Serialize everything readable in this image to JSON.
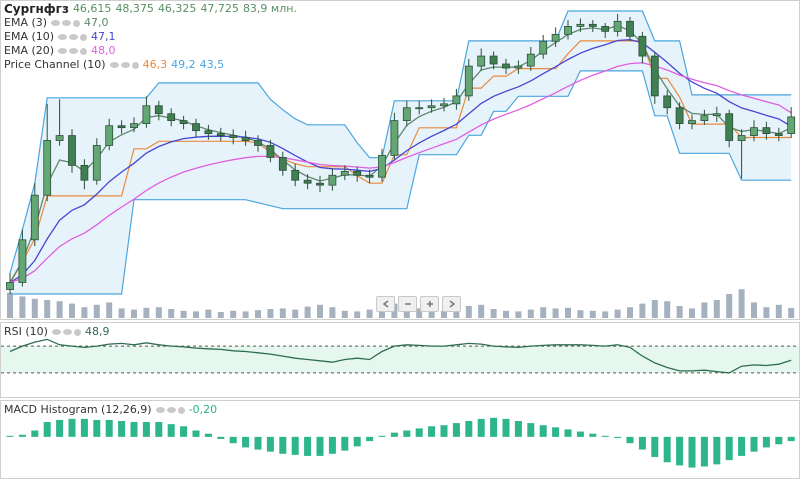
{
  "chart_data": {
    "type": "candlestick",
    "title": "Сургнфгз",
    "ohlc_labels": [
      {
        "value": 46.615,
        "label": "46,615"
      },
      {
        "value": 48.375,
        "label": "48,375"
      },
      {
        "value": 46.325,
        "label": "46,325"
      },
      {
        "value": 47.725,
        "label": "47,725"
      }
    ],
    "volume_label": {
      "value": 83.9,
      "label": "83,9 млн."
    },
    "label_color": "#5a8f62",
    "up_color": "#63a874",
    "down_color": "#3f7f52",
    "ylim": [
      35.5,
      55.0
    ],
    "open": [
      36.2,
      36.67,
      39.52,
      42.5,
      46.15,
      46.48,
      44.49,
      43.5,
      45.82,
      47.14,
      47.01,
      47.28,
      48.47,
      47.94,
      47.48,
      47.28,
      46.81,
      46.61,
      46.48,
      46.35,
      46.15,
      45.82,
      45.02,
      44.16,
      43.5,
      43.3,
      43.17,
      43.83,
      44.09,
      43.83,
      43.7,
      45.16,
      47.48,
      48.34,
      48.34,
      48.47,
      48.6,
      49.13,
      51.12,
      51.79,
      51.26,
      50.99,
      51.12,
      51.92,
      52.78,
      53.24,
      53.77,
      53.91,
      53.77,
      53.44,
      54.11,
      53.11,
      51.79,
      49.13,
      48.34,
      47.28,
      47.48,
      47.81,
      47.94,
      46.15,
      46.48,
      47.01,
      46.61,
      46.615
    ],
    "high": [
      37.3,
      40.2,
      43.3,
      48.6,
      48.9,
      46.9,
      44.9,
      46.3,
      47.6,
      47.5,
      47.7,
      49.1,
      48.8,
      48.3,
      47.8,
      47.6,
      47.2,
      47.0,
      46.9,
      46.8,
      46.5,
      46.2,
      45.4,
      44.6,
      43.9,
      43.8,
      44.3,
      44.5,
      44.4,
      44.2,
      45.6,
      48.0,
      48.8,
      48.8,
      48.9,
      49.0,
      49.6,
      51.6,
      52.3,
      52.1,
      51.6,
      51.5,
      52.4,
      53.2,
      53.7,
      54.2,
      54.3,
      54.2,
      54.0,
      54.6,
      54.4,
      53.4,
      52.0,
      49.5,
      48.7,
      47.9,
      48.2,
      48.4,
      48.2,
      46.9,
      47.5,
      47.4,
      47.0,
      48.375
    ],
    "low": [
      35.9,
      36.4,
      39.1,
      42.1,
      45.8,
      44.0,
      42.9,
      43.2,
      45.5,
      46.6,
      46.7,
      47.0,
      47.5,
      47.1,
      46.9,
      46.4,
      46.2,
      46.1,
      45.9,
      45.8,
      45.4,
      44.7,
      43.8,
      43.1,
      42.9,
      42.7,
      42.8,
      43.5,
      43.4,
      43.3,
      43.4,
      44.9,
      47.1,
      47.9,
      48.0,
      48.1,
      48.2,
      48.8,
      50.8,
      50.9,
      50.6,
      50.6,
      50.8,
      51.6,
      52.4,
      52.9,
      53.4,
      53.4,
      53.0,
      53.1,
      52.8,
      51.3,
      48.6,
      47.9,
      46.9,
      46.9,
      47.2,
      47.4,
      45.7,
      43.6,
      46.1,
      46.2,
      46.1,
      46.325
    ],
    "close": [
      36.67,
      39.52,
      42.5,
      46.15,
      46.48,
      44.49,
      43.5,
      45.82,
      47.14,
      47.01,
      47.28,
      48.47,
      47.94,
      47.48,
      47.28,
      46.81,
      46.61,
      46.48,
      46.35,
      46.15,
      45.82,
      45.02,
      44.16,
      43.5,
      43.3,
      43.17,
      43.83,
      44.09,
      43.83,
      43.7,
      45.16,
      47.48,
      48.34,
      48.34,
      48.47,
      48.6,
      49.13,
      51.12,
      51.79,
      51.26,
      50.99,
      51.12,
      51.92,
      52.78,
      53.24,
      53.77,
      53.91,
      53.77,
      53.44,
      54.11,
      53.11,
      51.79,
      49.13,
      48.34,
      47.28,
      47.48,
      47.81,
      47.94,
      46.15,
      46.48,
      47.01,
      46.61,
      46.48,
      47.725
    ],
    "overlays": [
      {
        "name": "EMA (3)",
        "color": "#5e8a6c",
        "legend": {
          "value": 47.0,
          "label": "47,0"
        },
        "values": [
          36.67,
          38.1,
          40.3,
          43.22,
          44.85,
          44.67,
          44.08,
          44.95,
          46.05,
          46.53,
          46.9,
          47.69,
          47.81,
          47.65,
          47.46,
          47.14,
          46.87,
          46.68,
          46.51,
          46.33,
          46.08,
          45.55,
          44.85,
          44.18,
          43.74,
          43.45,
          43.64,
          43.87,
          43.85,
          43.77,
          44.47,
          45.97,
          47.16,
          47.75,
          48.11,
          48.36,
          48.74,
          49.93,
          50.86,
          51.06,
          51.03,
          51.07,
          51.5,
          52.14,
          52.69,
          53.23,
          53.57,
          53.67,
          53.56,
          53.83,
          53.47,
          52.63,
          50.88,
          49.61,
          48.45,
          47.96,
          47.89,
          47.91,
          47.03,
          46.76,
          46.88,
          46.75,
          46.61,
          47.0
        ]
      },
      {
        "name": "EMA (10)",
        "color": "#4646d2",
        "legend": {
          "value": 47.1,
          "label": "47,1"
        },
        "values": [
          36.67,
          37.18,
          38.14,
          39.58,
          40.83,
          41.49,
          41.86,
          42.57,
          43.4,
          44.05,
          44.63,
          45.32,
          45.75,
          46.06,
          46.28,
          46.37,
          46.43,
          46.44,
          46.42,
          46.37,
          46.26,
          46.03,
          45.61,
          45.14,
          44.71,
          44.35,
          44.26,
          44.24,
          44.17,
          44.09,
          44.28,
          44.85,
          45.48,
          45.99,
          46.43,
          46.82,
          47.24,
          47.94,
          48.63,
          49.1,
          49.44,
          49.74,
          50.13,
          50.61,
          51.08,
          51.56,
          51.98,
          52.3,
          52.54,
          52.83,
          52.88,
          52.68,
          52.04,
          51.37,
          50.63,
          50.06,
          49.64,
          49.31,
          48.74,
          48.33,
          48.09,
          47.83,
          47.59,
          47.1
        ]
      },
      {
        "name": "EMA (20)",
        "color": "#e05ee0",
        "legend": {
          "value": 48.0,
          "label": "48,0"
        },
        "values": [
          36.67,
          36.94,
          37.46,
          38.29,
          39.07,
          39.59,
          39.96,
          40.52,
          41.15,
          41.71,
          42.23,
          42.82,
          43.31,
          43.71,
          44.05,
          44.3,
          44.52,
          44.71,
          44.87,
          45.0,
          45.09,
          45.09,
          45.0,
          44.86,
          44.7,
          44.55,
          44.48,
          44.44,
          44.38,
          44.31,
          44.39,
          44.68,
          45.02,
          45.34,
          45.64,
          45.93,
          46.23,
          46.71,
          47.19,
          47.58,
          47.9,
          48.2,
          48.55,
          48.94,
          49.34,
          49.77,
          50.17,
          50.51,
          50.79,
          51.1,
          51.29,
          51.34,
          51.13,
          50.86,
          50.52,
          50.24,
          50.01,
          49.82,
          49.48,
          49.19,
          48.97,
          48.74,
          48.52,
          48.0
        ]
      }
    ],
    "price_channel": {
      "name": "Price Channel (10)",
      "color": "#4aa6df",
      "fill": "#e7f3fb",
      "middle_color": "#e88a3c",
      "legend": [
        {
          "value": 46.3,
          "label": "46,3"
        },
        {
          "value": 49.2,
          "label": "49,2"
        },
        {
          "value": 43.5,
          "label": "43,5"
        }
      ],
      "upper": [
        37.3,
        40.2,
        43.3,
        49.0,
        49.0,
        49.0,
        49.0,
        49.0,
        49.0,
        49.0,
        49.0,
        49.0,
        50.0,
        50.0,
        50.0,
        50.0,
        50.0,
        50.0,
        50.0,
        50.0,
        50.0,
        48.9,
        48.2,
        47.6,
        47.2,
        47.2,
        47.2,
        47.2,
        46.0,
        45.0,
        45.0,
        48.8,
        48.8,
        48.8,
        48.8,
        48.8,
        48.8,
        52.8,
        52.8,
        52.8,
        52.8,
        52.8,
        52.8,
        52.8,
        52.8,
        54.8,
        54.8,
        54.8,
        54.8,
        54.8,
        54.8,
        54.8,
        52.8,
        52.8,
        52.8,
        49.2,
        49.2,
        49.2,
        49.2,
        49.2,
        49.2,
        49.2,
        49.2,
        49.2
      ],
      "middle": [
        36.6,
        38.05,
        39.6,
        42.45,
        42.45,
        42.45,
        42.45,
        42.45,
        42.45,
        42.45,
        45.6,
        45.6,
        46.1,
        46.1,
        46.1,
        46.1,
        46.1,
        46.1,
        46.1,
        46.1,
        46.0,
        45.35,
        44.9,
        44.6,
        44.4,
        44.4,
        44.4,
        44.4,
        43.8,
        43.3,
        43.3,
        45.2,
        45.2,
        47.0,
        47.0,
        47.0,
        47.0,
        49.65,
        49.65,
        50.45,
        50.45,
        50.95,
        50.95,
        50.95,
        50.95,
        51.95,
        52.8,
        52.8,
        52.8,
        52.8,
        52.8,
        52.8,
        50.3,
        50.3,
        49.05,
        47.25,
        47.25,
        47.25,
        47.25,
        46.35,
        46.35,
        46.35,
        46.35,
        46.35
      ],
      "lower": [
        35.9,
        35.9,
        35.9,
        35.9,
        35.9,
        35.9,
        35.9,
        35.9,
        35.9,
        35.9,
        42.2,
        42.2,
        42.2,
        42.2,
        42.2,
        42.2,
        42.2,
        42.2,
        42.2,
        42.2,
        42.0,
        41.8,
        41.6,
        41.6,
        41.6,
        41.6,
        41.6,
        41.6,
        41.6,
        41.6,
        41.6,
        41.6,
        41.6,
        45.2,
        45.2,
        45.2,
        45.2,
        46.5,
        46.5,
        48.1,
        48.1,
        49.1,
        49.1,
        49.1,
        49.1,
        49.1,
        50.8,
        50.8,
        50.8,
        50.8,
        50.8,
        50.8,
        47.8,
        47.8,
        45.3,
        45.3,
        45.3,
        45.3,
        45.3,
        43.5,
        43.5,
        43.5,
        43.5,
        43.5
      ]
    },
    "volume": {
      "color": "#a5b1bf",
      "ylim": [
        0,
        250
      ],
      "values": [
        210,
        180,
        160,
        150,
        140,
        120,
        90,
        110,
        130,
        80,
        70,
        85,
        90,
        75,
        60,
        55,
        70,
        50,
        60,
        55,
        65,
        75,
        80,
        70,
        95,
        110,
        90,
        60,
        55,
        70,
        130,
        120,
        95,
        80,
        65,
        60,
        70,
        100,
        110,
        75,
        60,
        55,
        70,
        90,
        80,
        85,
        65,
        60,
        55,
        70,
        90,
        120,
        150,
        140,
        100,
        80,
        130,
        150,
        200,
        240,
        130,
        90,
        110,
        83.9
      ]
    },
    "rsi": {
      "name": "RSI (10)",
      "color": "#2f6d52",
      "band_color": "#e5f7ee",
      "legend": {
        "value": 48.9,
        "label": "48,9"
      },
      "ylim": [
        0,
        100
      ],
      "levels": [
        30,
        70
      ],
      "values": [
        62,
        70,
        76,
        80,
        72,
        70,
        68,
        70,
        73,
        74,
        72,
        75,
        72,
        70,
        69,
        67,
        66,
        65,
        63,
        62,
        60,
        58,
        55,
        52,
        50,
        48,
        46,
        50,
        52,
        50,
        62,
        70,
        72,
        71,
        70,
        70,
        72,
        74,
        73,
        70,
        69,
        68,
        70,
        71,
        72,
        72,
        72,
        71,
        70,
        72,
        68,
        55,
        45,
        38,
        33,
        33,
        34,
        32,
        30,
        40,
        42,
        41,
        43,
        48.9
      ]
    },
    "macd": {
      "name": "MACD Histogram (12,26,9)",
      "color": "#2db58c",
      "legend": {
        "value": -0.2,
        "label": "-0,20"
      },
      "ylim": [
        -1.85,
        1.6
      ],
      "values": [
        0.05,
        0.1,
        0.3,
        0.7,
        0.8,
        0.85,
        0.85,
        0.8,
        0.8,
        0.75,
        0.7,
        0.7,
        0.7,
        0.6,
        0.5,
        0.3,
        0.15,
        -0.1,
        -0.3,
        -0.5,
        -0.6,
        -0.7,
        -0.8,
        -0.85,
        -0.9,
        -0.9,
        -0.8,
        -0.65,
        -0.45,
        -0.2,
        0.05,
        0.2,
        0.3,
        0.4,
        0.5,
        0.55,
        0.65,
        0.75,
        0.85,
        0.9,
        0.85,
        0.75,
        0.65,
        0.55,
        0.45,
        0.35,
        0.25,
        0.15,
        0.05,
        -0.05,
        -0.3,
        -0.6,
        -0.95,
        -1.2,
        -1.35,
        -1.45,
        -1.4,
        -1.3,
        -1.1,
        -0.9,
        -0.7,
        -0.5,
        -0.35,
        -0.2
      ]
    }
  }
}
